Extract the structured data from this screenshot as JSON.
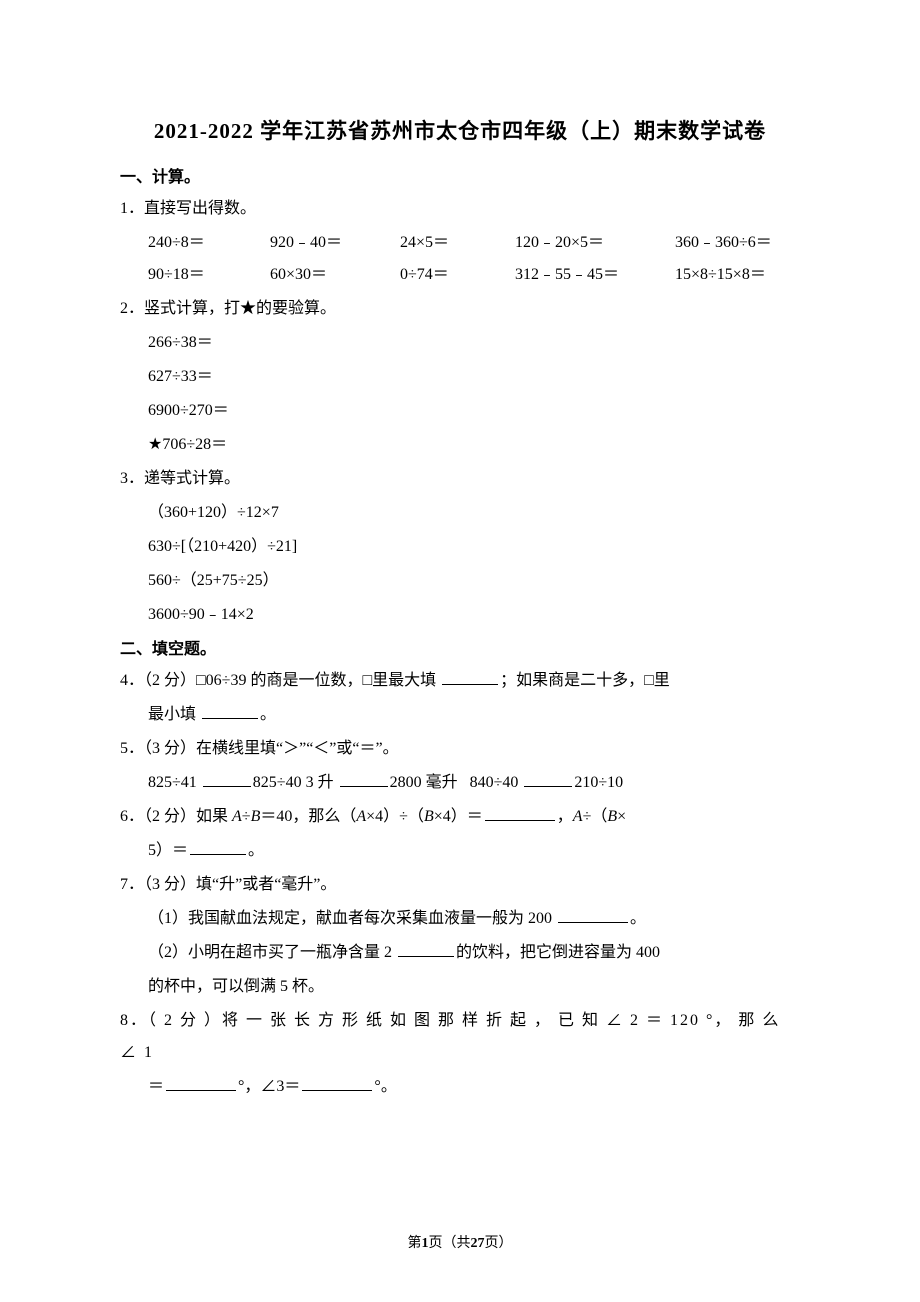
{
  "title": "2021-2022 学年江苏省苏州市太仓市四年级（上）期末数学试卷",
  "sections": {
    "s1": "一、计算。",
    "s2": "二、填空题。"
  },
  "q1": {
    "stem": "1．直接写出得数。",
    "row1": {
      "c1": "240÷8＝",
      "c2": "920﹣40＝",
      "c3": "24×5＝",
      "c4": "120﹣20×5＝",
      "c5": "360﹣360÷6＝"
    },
    "row2": {
      "c1": "90÷18＝",
      "c2": "60×30＝",
      "c3": "0÷74＝",
      "c4": "312﹣55﹣45＝",
      "c5": "15×8÷15×8＝"
    }
  },
  "q2": {
    "stem": "2．竖式计算，打★的要验算。",
    "a": "266÷38＝",
    "b": "627÷33＝",
    "c": "6900÷270＝",
    "d": "★706÷28＝"
  },
  "q3": {
    "stem": "3．递等式计算。",
    "a": "（360+120）÷12×7",
    "b": "630÷[（210+420）÷21]",
    "c": "560÷（25+75÷25）",
    "d": "3600÷90﹣14×2"
  },
  "q4": {
    "pre": "4．（2 分）□06÷39 的商是一位数，□里最大填 ",
    "mid": "；如果商是二十多，□里",
    "line2a": "最小填 ",
    "line2b": "。"
  },
  "q5": {
    "stem": "5．（3 分）在横线里填“＞”“＜”或“＝”。",
    "p1a": "825÷41 ",
    "p1b": "825÷40 3 升 ",
    "p1c": "2800 毫升",
    "p2a": "840÷40 ",
    "p2b": "210÷10"
  },
  "q6": {
    "pre": "6．（2 分）如果 ",
    "A": "A",
    "div": "÷",
    "B": "B",
    "eq40": "＝40，那么（",
    "x4a": "×4）÷（",
    "x4b": "×4）＝",
    "comma": "，",
    "adiv": "÷（",
    "times": "×",
    "line2a": "5）＝",
    "line2b": "。"
  },
  "q7": {
    "stem": "7．（3 分）填“升”或者“毫升”。",
    "p1a": "（1）我国献血法规定，献血者每次采集血液量一般为 200 ",
    "p1b": "。",
    "p2a": "（2）小明在超市买了一瓶净含量 2 ",
    "p2b": "的饮料，把它倒进容量为 400",
    "p3": "的杯中，可以倒满 5 杯。"
  },
  "q8": {
    "pre": "8．（ 2 分 ）将 一 张 长 方 形 纸 如 图 那 样 折 起 ， 已 知 ∠ 2 ＝ 120 °， 那 么 ∠ 1",
    "line2a": "＝",
    "line2b": "°，∠3＝",
    "line2c": "°。"
  },
  "footer": {
    "a": "第",
    "p": "1",
    "b": "页（共",
    "t": "27",
    "c": "页）"
  }
}
